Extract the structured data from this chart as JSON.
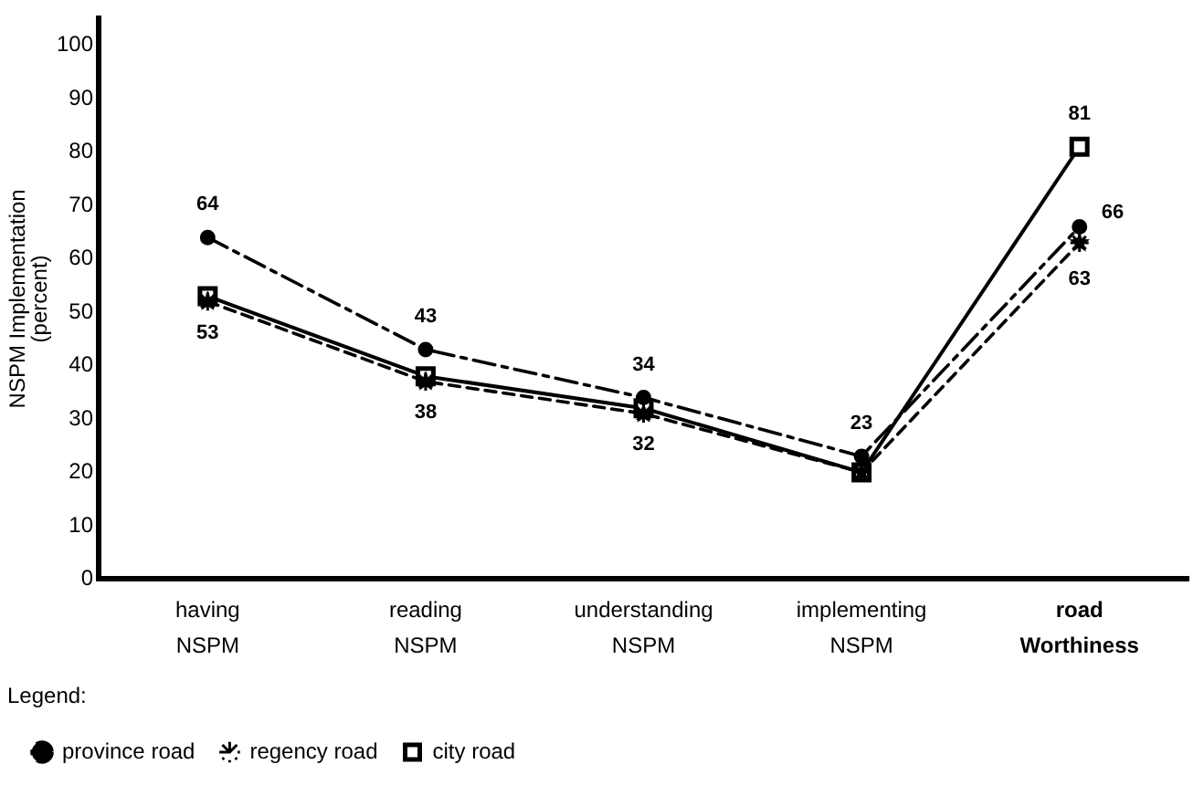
{
  "chart_data": {
    "type": "line",
    "ylabel": "NSPM Implementation\n(percent)",
    "legend_title": "Legend:",
    "categories": [
      "having\nNSPM",
      "reading\nNSPM",
      "understanding\nNSPM",
      "implementing\nNSPM",
      "road\nWorthiness"
    ],
    "ylim": [
      0,
      105
    ],
    "yticks": [
      0,
      10,
      20,
      30,
      40,
      50,
      60,
      70,
      80,
      90,
      100
    ],
    "grid": false,
    "legend": "bottom left",
    "series": [
      {
        "name": "province road",
        "color": "#000000",
        "marker": "circle",
        "line_style": "dashdot",
        "values": [
          64,
          43,
          34,
          23,
          66
        ],
        "value_labels": [
          "64",
          "43",
          "34",
          "23",
          "66"
        ]
      },
      {
        "name": "regency road",
        "color": "#000000",
        "marker": "star",
        "line_style": "dashed",
        "values": [
          52,
          37,
          31,
          20,
          63
        ],
        "value_labels": [
          null,
          null,
          null,
          null,
          "63"
        ]
      },
      {
        "name": "city road",
        "color": "#000000",
        "marker": "square",
        "line_style": "solid",
        "values": [
          53,
          38,
          32,
          20,
          81
        ],
        "value_labels": [
          "53",
          "38",
          "32",
          null,
          "81"
        ]
      }
    ]
  }
}
